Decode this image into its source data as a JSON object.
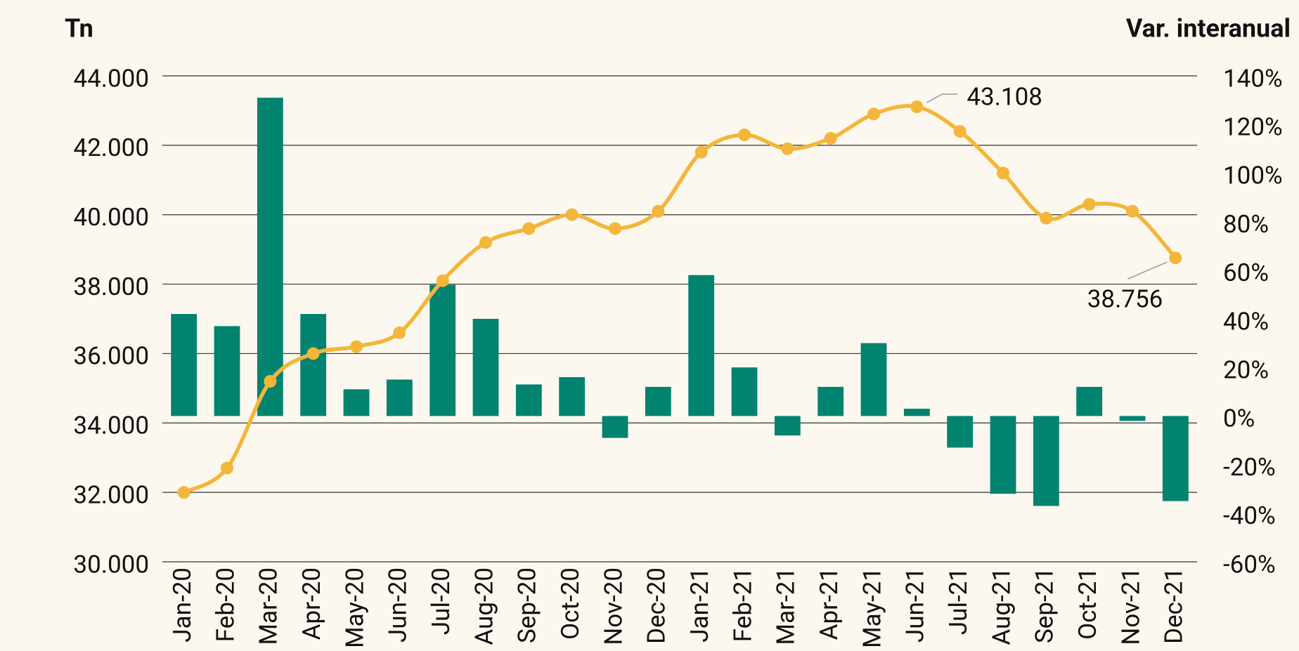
{
  "chart_data": {
    "type": "bar-line",
    "ylabel": "Tn",
    "y2label": "Var. interanual",
    "categories": [
      "Jan-20",
      "Feb-20",
      "Mar-20",
      "Apr-20",
      "May-20",
      "Jun-20",
      "Jul-20",
      "Aug-20",
      "Sep-20",
      "Oct-20",
      "Nov-20",
      "Dec-20",
      "Jan-21",
      "Feb-21",
      "Mar-21",
      "Apr-21",
      "May-21",
      "Jun-21",
      "Jul-21",
      "Aug-21",
      "Sep-21",
      "Oct-21",
      "Nov-21",
      "Dec-21"
    ],
    "series": [
      {
        "type": "bar",
        "axis": "y2",
        "color": "#00836f",
        "values": [
          42,
          37,
          131,
          42,
          11,
          15,
          54,
          40,
          13,
          16,
          -9,
          12,
          58,
          20,
          -8,
          12,
          30,
          3,
          -13,
          -32,
          -37,
          12,
          -2,
          -35
        ]
      },
      {
        "type": "line",
        "axis": "y",
        "color": "#f4b63a",
        "values": [
          32000,
          32700,
          35200,
          36000,
          36200,
          36600,
          38100,
          39200,
          39600,
          40000,
          39600,
          40100,
          41800,
          42300,
          41900,
          42200,
          42900,
          43108,
          42400,
          41200,
          39900,
          40300,
          40100,
          38756
        ],
        "value_labels": [
          null,
          null,
          null,
          null,
          null,
          null,
          null,
          null,
          null,
          null,
          null,
          null,
          null,
          null,
          null,
          null,
          null,
          "43.108",
          null,
          null,
          null,
          null,
          null,
          "38.756"
        ]
      }
    ],
    "ylim": [
      30000,
      44000
    ],
    "yticks": [
      {
        "value": 30000,
        "label": "30.000"
      },
      {
        "value": 32000,
        "label": "32.000"
      },
      {
        "value": 34000,
        "label": "34.000"
      },
      {
        "value": 36000,
        "label": "36.000"
      },
      {
        "value": 38000,
        "label": "38.000"
      },
      {
        "value": 40000,
        "label": "40.000"
      },
      {
        "value": 42000,
        "label": "42.000"
      },
      {
        "value": 44000,
        "label": "44.000"
      }
    ],
    "y2lim": [
      -60,
      140
    ],
    "y2ticks": [
      {
        "value": -60,
        "label": "-60%"
      },
      {
        "value": -40,
        "label": "-40%"
      },
      {
        "value": -20,
        "label": "-20%"
      },
      {
        "value": 0,
        "label": "0%"
      },
      {
        "value": 20,
        "label": "20%"
      },
      {
        "value": 40,
        "label": "40%"
      },
      {
        "value": 60,
        "label": "60%"
      },
      {
        "value": 80,
        "label": "80%"
      },
      {
        "value": 100,
        "label": "100%"
      },
      {
        "value": 120,
        "label": "120%"
      },
      {
        "value": 140,
        "label": "140%"
      }
    ],
    "grid": true
  }
}
